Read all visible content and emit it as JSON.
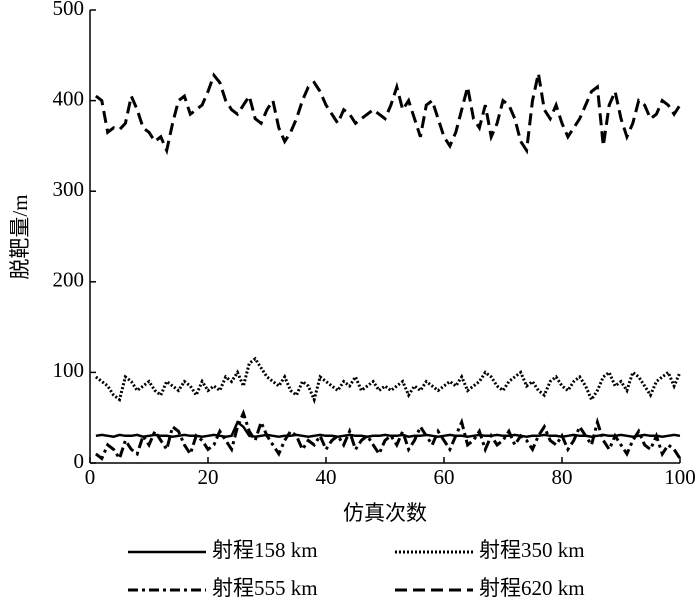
{
  "chart_data": {
    "type": "line",
    "xlabel": "仿真次数",
    "ylabel": "脱靶量/m",
    "xlim": [
      0,
      100
    ],
    "xticks": [
      0,
      20,
      40,
      60,
      80,
      100
    ],
    "ylim": [
      0,
      500
    ],
    "yticks": [
      0,
      100,
      200,
      300,
      400,
      500
    ],
    "x": [
      1,
      2,
      3,
      4,
      5,
      6,
      7,
      8,
      9,
      10,
      11,
      12,
      13,
      14,
      15,
      16,
      17,
      18,
      19,
      20,
      21,
      22,
      23,
      24,
      25,
      26,
      27,
      28,
      29,
      30,
      31,
      32,
      33,
      34,
      35,
      36,
      37,
      38,
      39,
      40,
      41,
      42,
      43,
      44,
      45,
      46,
      47,
      48,
      49,
      50,
      51,
      52,
      53,
      54,
      55,
      56,
      57,
      58,
      59,
      60,
      61,
      62,
      63,
      64,
      65,
      66,
      67,
      68,
      69,
      70,
      71,
      72,
      73,
      74,
      75,
      76,
      77,
      78,
      79,
      80,
      81,
      82,
      83,
      84,
      85,
      86,
      87,
      88,
      89,
      90,
      91,
      92,
      93,
      94,
      95,
      96,
      97,
      98,
      99,
      100
    ],
    "series": [
      {
        "name": "射程158 km",
        "color": "#000000",
        "dash": "solid",
        "values": [
          30,
          31,
          30,
          29,
          31,
          30,
          30,
          31,
          29,
          30,
          31,
          30,
          30,
          29,
          30,
          31,
          30,
          30,
          29,
          30,
          31,
          30,
          29,
          30,
          45,
          40,
          30,
          29,
          30,
          31,
          30,
          29,
          30,
          30,
          31,
          30,
          29,
          30,
          31,
          30,
          30,
          29,
          30,
          31,
          30,
          30,
          29,
          30,
          30,
          31,
          30,
          30,
          31,
          29,
          30,
          30,
          31,
          30,
          29,
          30,
          31,
          30,
          30,
          29,
          30,
          31,
          30,
          30,
          31,
          30,
          30,
          31,
          30,
          29,
          30,
          30,
          31,
          30,
          30,
          29,
          30,
          31,
          30,
          30,
          29,
          30,
          31,
          30,
          30,
          31,
          30,
          29,
          30,
          31,
          30,
          30,
          29,
          30,
          31,
          30
        ]
      },
      {
        "name": "射程350 km",
        "color": "#000000",
        "dash": "dotted",
        "values": [
          95,
          90,
          85,
          75,
          70,
          95,
          90,
          80,
          85,
          90,
          80,
          75,
          90,
          85,
          80,
          90,
          85,
          75,
          90,
          80,
          85,
          80,
          95,
          90,
          100,
          85,
          110,
          115,
          105,
          95,
          90,
          85,
          95,
          80,
          75,
          90,
          85,
          70,
          95,
          90,
          85,
          80,
          90,
          85,
          95,
          80,
          85,
          90,
          80,
          85,
          80,
          85,
          90,
          75,
          85,
          80,
          90,
          85,
          80,
          85,
          90,
          85,
          95,
          80,
          85,
          90,
          100,
          95,
          85,
          80,
          90,
          95,
          100,
          85,
          90,
          80,
          75,
          90,
          95,
          85,
          80,
          90,
          95,
          85,
          70,
          80,
          95,
          100,
          85,
          90,
          80,
          100,
          95,
          85,
          75,
          90,
          95,
          100,
          85,
          100
        ]
      },
      {
        "name": "射程555 km",
        "color": "#000000",
        "dash": "dashdot",
        "values": [
          10,
          5,
          20,
          15,
          5,
          25,
          15,
          10,
          30,
          20,
          35,
          25,
          15,
          40,
          35,
          20,
          10,
          30,
          25,
          15,
          20,
          35,
          25,
          15,
          40,
          55,
          35,
          25,
          45,
          30,
          20,
          10,
          25,
          35,
          30,
          15,
          25,
          20,
          30,
          15,
          25,
          30,
          20,
          35,
          15,
          25,
          30,
          20,
          10,
          25,
          30,
          20,
          35,
          15,
          25,
          40,
          30,
          20,
          35,
          25,
          15,
          30,
          45,
          20,
          25,
          35,
          15,
          30,
          20,
          25,
          35,
          20,
          30,
          25,
          15,
          30,
          40,
          25,
          20,
          30,
          15,
          25,
          40,
          30,
          20,
          45,
          25,
          15,
          30,
          20,
          10,
          25,
          35,
          20,
          15,
          30,
          10,
          20,
          15,
          5
        ]
      },
      {
        "name": "射程620 km",
        "color": "#000000",
        "dash": "dashed",
        "values": [
          405,
          400,
          365,
          370,
          368,
          375,
          405,
          390,
          370,
          365,
          355,
          360,
          345,
          375,
          400,
          405,
          385,
          390,
          395,
          410,
          428,
          420,
          400,
          390,
          385,
          395,
          405,
          380,
          375,
          390,
          400,
          370,
          355,
          365,
          380,
          400,
          415,
          420,
          410,
          395,
          385,
          375,
          390,
          385,
          375,
          380,
          385,
          390,
          385,
          380,
          395,
          415,
          390,
          400,
          380,
          360,
          395,
          400,
          380,
          360,
          350,
          365,
          390,
          415,
          380,
          370,
          395,
          360,
          375,
          400,
          395,
          380,
          355,
          345,
          400,
          430,
          390,
          380,
          395,
          375,
          360,
          370,
          380,
          395,
          410,
          415,
          350,
          395,
          410,
          380,
          360,
          375,
          400,
          395,
          380,
          385,
          400,
          395,
          385,
          395
        ]
      }
    ]
  }
}
